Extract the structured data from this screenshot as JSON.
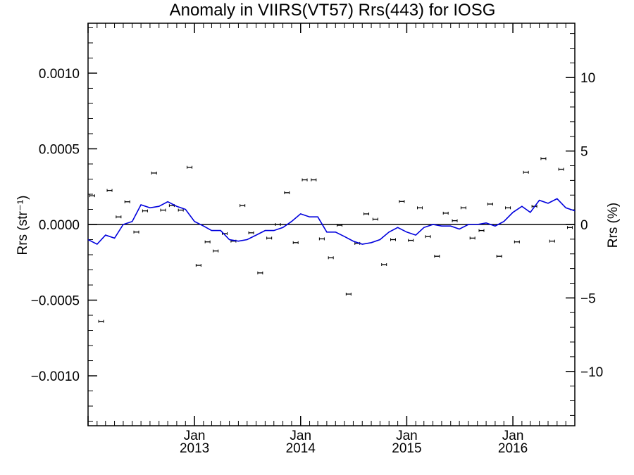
{
  "chart_data": {
    "type": "scatter",
    "title": "Anomaly in VIIRS(VT57) Rrs(443) for IOSG",
    "ylabel": "Rrs (str⁻¹)",
    "y2label": "Rrs (%)",
    "ylim": [
      -0.00133,
      0.00133
    ],
    "y2lim": [
      -13.7,
      13.7
    ],
    "yticks": [
      -0.001,
      -0.0005,
      0.0,
      0.0005,
      0.001
    ],
    "yticklabels": [
      "−0.0010",
      "−0.0005",
      "0.0000",
      "0.0005",
      "0.0010"
    ],
    "y2ticks": [
      -10,
      -5,
      0,
      5,
      10
    ],
    "y2ticklabels": [
      "−10",
      "−5",
      "0",
      "5",
      "10"
    ],
    "xlim": [
      "2012-01-01",
      "2016-08-01"
    ],
    "xticks": [
      "2013-01-01",
      "2014-01-01",
      "2015-01-01",
      "2016-01-01"
    ],
    "xticklabels": [
      [
        "Jan",
        "2013"
      ],
      [
        "Jan",
        "2014"
      ],
      [
        "Jan",
        "2015"
      ],
      [
        "Jan",
        "2016"
      ]
    ],
    "zero_line": true,
    "grid": false,
    "series": [
      {
        "kind": "points_with_error_bars",
        "color": "#000000",
        "dates": [
          "2012-01-15",
          "2012-02-15",
          "2012-03-15",
          "2012-04-15",
          "2012-05-15",
          "2012-06-15",
          "2012-07-15",
          "2012-08-15",
          "2012-09-15",
          "2012-10-15",
          "2012-11-15",
          "2012-12-15",
          "2013-01-15",
          "2013-02-15",
          "2013-03-15",
          "2013-04-15",
          "2013-05-15",
          "2013-06-15",
          "2013-07-15",
          "2013-08-15",
          "2013-09-15",
          "2013-10-15",
          "2013-11-15",
          "2013-12-15",
          "2014-01-15",
          "2014-02-15",
          "2014-03-15",
          "2014-04-15",
          "2014-05-15",
          "2014-06-15",
          "2014-07-15",
          "2014-08-15",
          "2014-09-15",
          "2014-10-15",
          "2014-11-15",
          "2014-12-15",
          "2015-01-15",
          "2015-02-15",
          "2015-03-15",
          "2015-04-15",
          "2015-05-15",
          "2015-06-15",
          "2015-07-15",
          "2015-08-15",
          "2015-09-15",
          "2015-10-15",
          "2015-11-15",
          "2015-12-15",
          "2016-01-15",
          "2016-02-15",
          "2016-03-15",
          "2016-04-15",
          "2016-05-15",
          "2016-06-15",
          "2016-07-15"
        ],
        "values": [
          0.00019,
          -0.00064,
          0.000225,
          5e-05,
          0.00015,
          -5e-05,
          9e-05,
          0.00034,
          9.5e-05,
          0.000125,
          9.5e-05,
          0.000378,
          -0.00027,
          -0.000115,
          -0.000175,
          -6e-05,
          -0.00011,
          0.000125,
          -5.5e-05,
          -0.00032,
          -9e-05,
          0.0,
          0.00021,
          -0.00012,
          0.000295,
          0.000295,
          -9.5e-05,
          -0.00022,
          -5e-06,
          -0.00046,
          -0.000125,
          7e-05,
          3.5e-05,
          -0.000265,
          -0.0001,
          0.000152,
          -0.000105,
          0.00011,
          -8e-05,
          -0.00021,
          7.5e-05,
          2.5e-05,
          0.00011,
          -9e-05,
          -4e-05,
          0.000135,
          -0.00021,
          0.00011,
          -0.000115,
          0.000345,
          0.00012,
          0.000435,
          -0.00011,
          0.000365,
          -2e-05
        ]
      },
      {
        "kind": "line",
        "color": "#0000dd",
        "dates": [
          "2012-01-01",
          "2012-02-01",
          "2012-03-01",
          "2012-04-01",
          "2012-05-01",
          "2012-06-01",
          "2012-07-01",
          "2012-08-01",
          "2012-09-01",
          "2012-10-01",
          "2012-11-01",
          "2012-12-01",
          "2013-01-01",
          "2013-02-01",
          "2013-03-01",
          "2013-04-01",
          "2013-05-01",
          "2013-06-01",
          "2013-07-01",
          "2013-08-01",
          "2013-09-01",
          "2013-10-01",
          "2013-11-01",
          "2013-12-01",
          "2014-01-01",
          "2014-02-01",
          "2014-03-01",
          "2014-04-01",
          "2014-05-01",
          "2014-06-01",
          "2014-07-01",
          "2014-08-01",
          "2014-09-01",
          "2014-10-01",
          "2014-11-01",
          "2014-12-01",
          "2015-01-01",
          "2015-02-01",
          "2015-03-01",
          "2015-04-01",
          "2015-05-01",
          "2015-06-01",
          "2015-07-01",
          "2015-08-01",
          "2015-09-01",
          "2015-10-01",
          "2015-11-01",
          "2015-12-01",
          "2016-01-01",
          "2016-02-01",
          "2016-03-01",
          "2016-04-01",
          "2016-05-01",
          "2016-06-01",
          "2016-07-01",
          "2016-08-01"
        ],
        "values": [
          -0.0001,
          -0.00013,
          -7e-05,
          -9e-05,
          0.0,
          2e-05,
          0.00013,
          0.00011,
          0.00012,
          0.00015,
          0.00012,
          0.0001,
          2e-05,
          -1e-05,
          -4e-05,
          -4e-05,
          -0.0001,
          -0.00011,
          -0.0001,
          -7e-05,
          -4e-05,
          -4e-05,
          -2e-05,
          2e-05,
          7e-05,
          5e-05,
          5e-05,
          -5e-05,
          -5e-05,
          -8e-05,
          -0.00011,
          -0.00013,
          -0.00012,
          -0.0001,
          -5e-05,
          -2e-05,
          -5e-05,
          -7e-05,
          -2e-05,
          0.0,
          -1e-05,
          -1e-05,
          -3e-05,
          0.0,
          0.0,
          1e-05,
          -1e-05,
          2e-05,
          8e-05,
          0.00012,
          8e-05,
          0.00016,
          0.00014,
          0.00017,
          0.00011,
          9e-05
        ]
      }
    ]
  }
}
